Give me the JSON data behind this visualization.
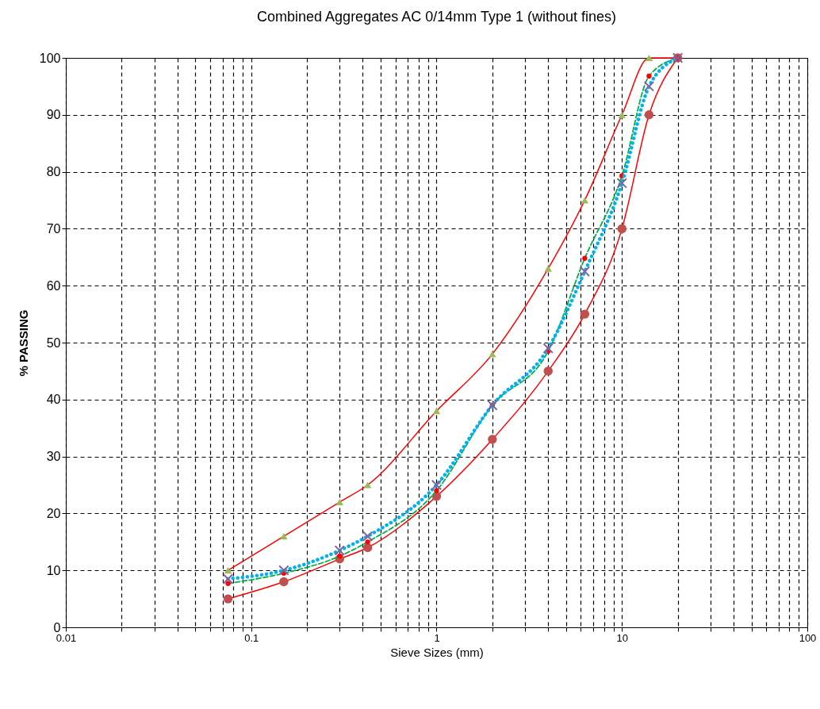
{
  "chart_data": {
    "type": "line",
    "title": "Combined Aggregates AC 0/14mm Type 1 (without fines)",
    "xlabel": "Sieve Sizes (mm)",
    "ylabel": "% PASSING",
    "log": "x",
    "grid": true,
    "xlim": [
      0.01,
      100
    ],
    "xticks": [
      0.01,
      {
        "value": 0.02,
        "label": null
      },
      {
        "value": 0.03,
        "label": null
      },
      {
        "value": 0.04,
        "label": null
      },
      {
        "value": 0.05,
        "label": null
      },
      {
        "value": 0.06,
        "label": null
      },
      {
        "value": 0.07,
        "label": null
      },
      {
        "value": 0.08,
        "label": null
      },
      {
        "value": 0.09,
        "label": null
      },
      0.1,
      {
        "value": 0.2,
        "label": null
      },
      {
        "value": 0.3,
        "label": null
      },
      {
        "value": 0.4,
        "label": null
      },
      {
        "value": 0.5,
        "label": null
      },
      {
        "value": 0.6,
        "label": null
      },
      {
        "value": 0.7,
        "label": null
      },
      {
        "value": 0.8,
        "label": null
      },
      {
        "value": 0.9,
        "label": null
      },
      1,
      {
        "value": 2,
        "label": null
      },
      {
        "value": 3,
        "label": null
      },
      {
        "value": 4,
        "label": null
      },
      {
        "value": 5,
        "label": null
      },
      {
        "value": 6,
        "label": null
      },
      {
        "value": 7,
        "label": null
      },
      {
        "value": 8,
        "label": null
      },
      {
        "value": 9,
        "label": null
      },
      10,
      {
        "value": 20,
        "label": null
      },
      {
        "value": 30,
        "label": null
      },
      {
        "value": 40,
        "label": null
      },
      {
        "value": 50,
        "label": null
      },
      {
        "value": 60,
        "label": null
      },
      {
        "value": 70,
        "label": null
      },
      {
        "value": 80,
        "label": null
      },
      {
        "value": 90,
        "label": null
      },
      100
    ],
    "ylim": [
      0,
      100
    ],
    "yticks": [
      0,
      10,
      20,
      30,
      40,
      50,
      60,
      70,
      80,
      90,
      100
    ],
    "x": [
      0.075,
      0.15,
      0.3,
      0.425,
      1,
      2,
      4,
      6.3,
      10,
      14,
      20
    ],
    "series": [
      {
        "color": "#ff0000",
        "line_style": "solid",
        "marker": "triangle",
        "colors": [
          "#9bbb59",
          "#9bbb59",
          "#9bbb59",
          "#9bbb59",
          "#9bbb59",
          "#9bbb59",
          "#9bbb59",
          "#9bbb59",
          "#9bbb59",
          "#9bbb59",
          "#9bbb59"
        ],
        "values": [
          10,
          16,
          22,
          25,
          38,
          48,
          63,
          75,
          90,
          100,
          100
        ]
      },
      {
        "color": "#ff0000",
        "line_style": "solid",
        "marker": "circle",
        "colors": [
          "#c0504d",
          "#c0504d",
          "#c0504d",
          "#c0504d",
          "#c0504d",
          "#c0504d",
          "#c0504d",
          "#c0504d",
          "#c0504d",
          "#c0504d",
          "#c0504d"
        ],
        "values": [
          5,
          8,
          12,
          14,
          23,
          33,
          45,
          55,
          70,
          90,
          100
        ]
      },
      {
        "color": "#00b050",
        "line_style": "dashed",
        "marker": "circle",
        "colors": [
          "#ff0000",
          "#ff0000",
          "#ff0000",
          "#ff0000",
          "#ff0000",
          "#ff0000",
          "#ff0000",
          "#ff0000",
          "#ff0000",
          "#ff0000",
          "#ff0000"
        ],
        "values": [
          7.7,
          9.5,
          12.5,
          15,
          24,
          39,
          48.5,
          64.8,
          79.3,
          96.8,
          100
        ]
      },
      {
        "color": "#00b0f0",
        "line_style": "dotted",
        "marker": "cross",
        "colors": [
          "#8064a2",
          "#8064a2",
          "#8064a2",
          "#8064a2",
          "#8064a2",
          "#8064a2",
          "#8064a2",
          "#8064a2",
          "#8064a2",
          "#8064a2",
          "#8064a2"
        ],
        "values": [
          8.5,
          10,
          13.5,
          16,
          25,
          39,
          49,
          62.5,
          78,
          95,
          100
        ]
      }
    ]
  }
}
